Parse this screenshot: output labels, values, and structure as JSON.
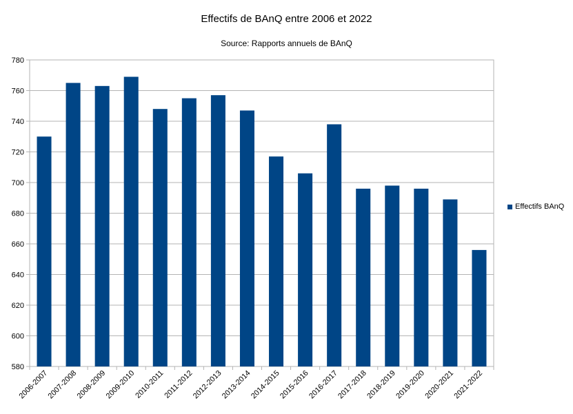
{
  "chart_data": {
    "type": "bar",
    "title": "Effectifs de BAnQ entre 2006 et 2022",
    "subtitle": "Source: Rapports annuels de BAnQ",
    "categories": [
      "2006-2007",
      "2007-2008",
      "2008-2009",
      "2009-2010",
      "2010-2011",
      "2011-2012",
      "2012-2013",
      "2013-2014",
      "2014-2015",
      "2015-2016",
      "2016-2017",
      "2017-2018",
      "2018-2019",
      "2019-2020",
      "2020-2021",
      "2021-2022"
    ],
    "series": [
      {
        "name": "Effectifs BAnQ",
        "values": [
          730,
          765,
          763,
          769,
          748,
          755,
          757,
          747,
          717,
          706,
          738,
          696,
          698,
          696,
          689,
          656
        ]
      }
    ],
    "ylim": [
      580,
      780
    ],
    "yticks": [
      "580",
      "600",
      "620",
      "640",
      "660",
      "680",
      "700",
      "720",
      "740",
      "760",
      "780"
    ],
    "grid": true,
    "legend_position": "right",
    "bar_color": "#004586"
  }
}
